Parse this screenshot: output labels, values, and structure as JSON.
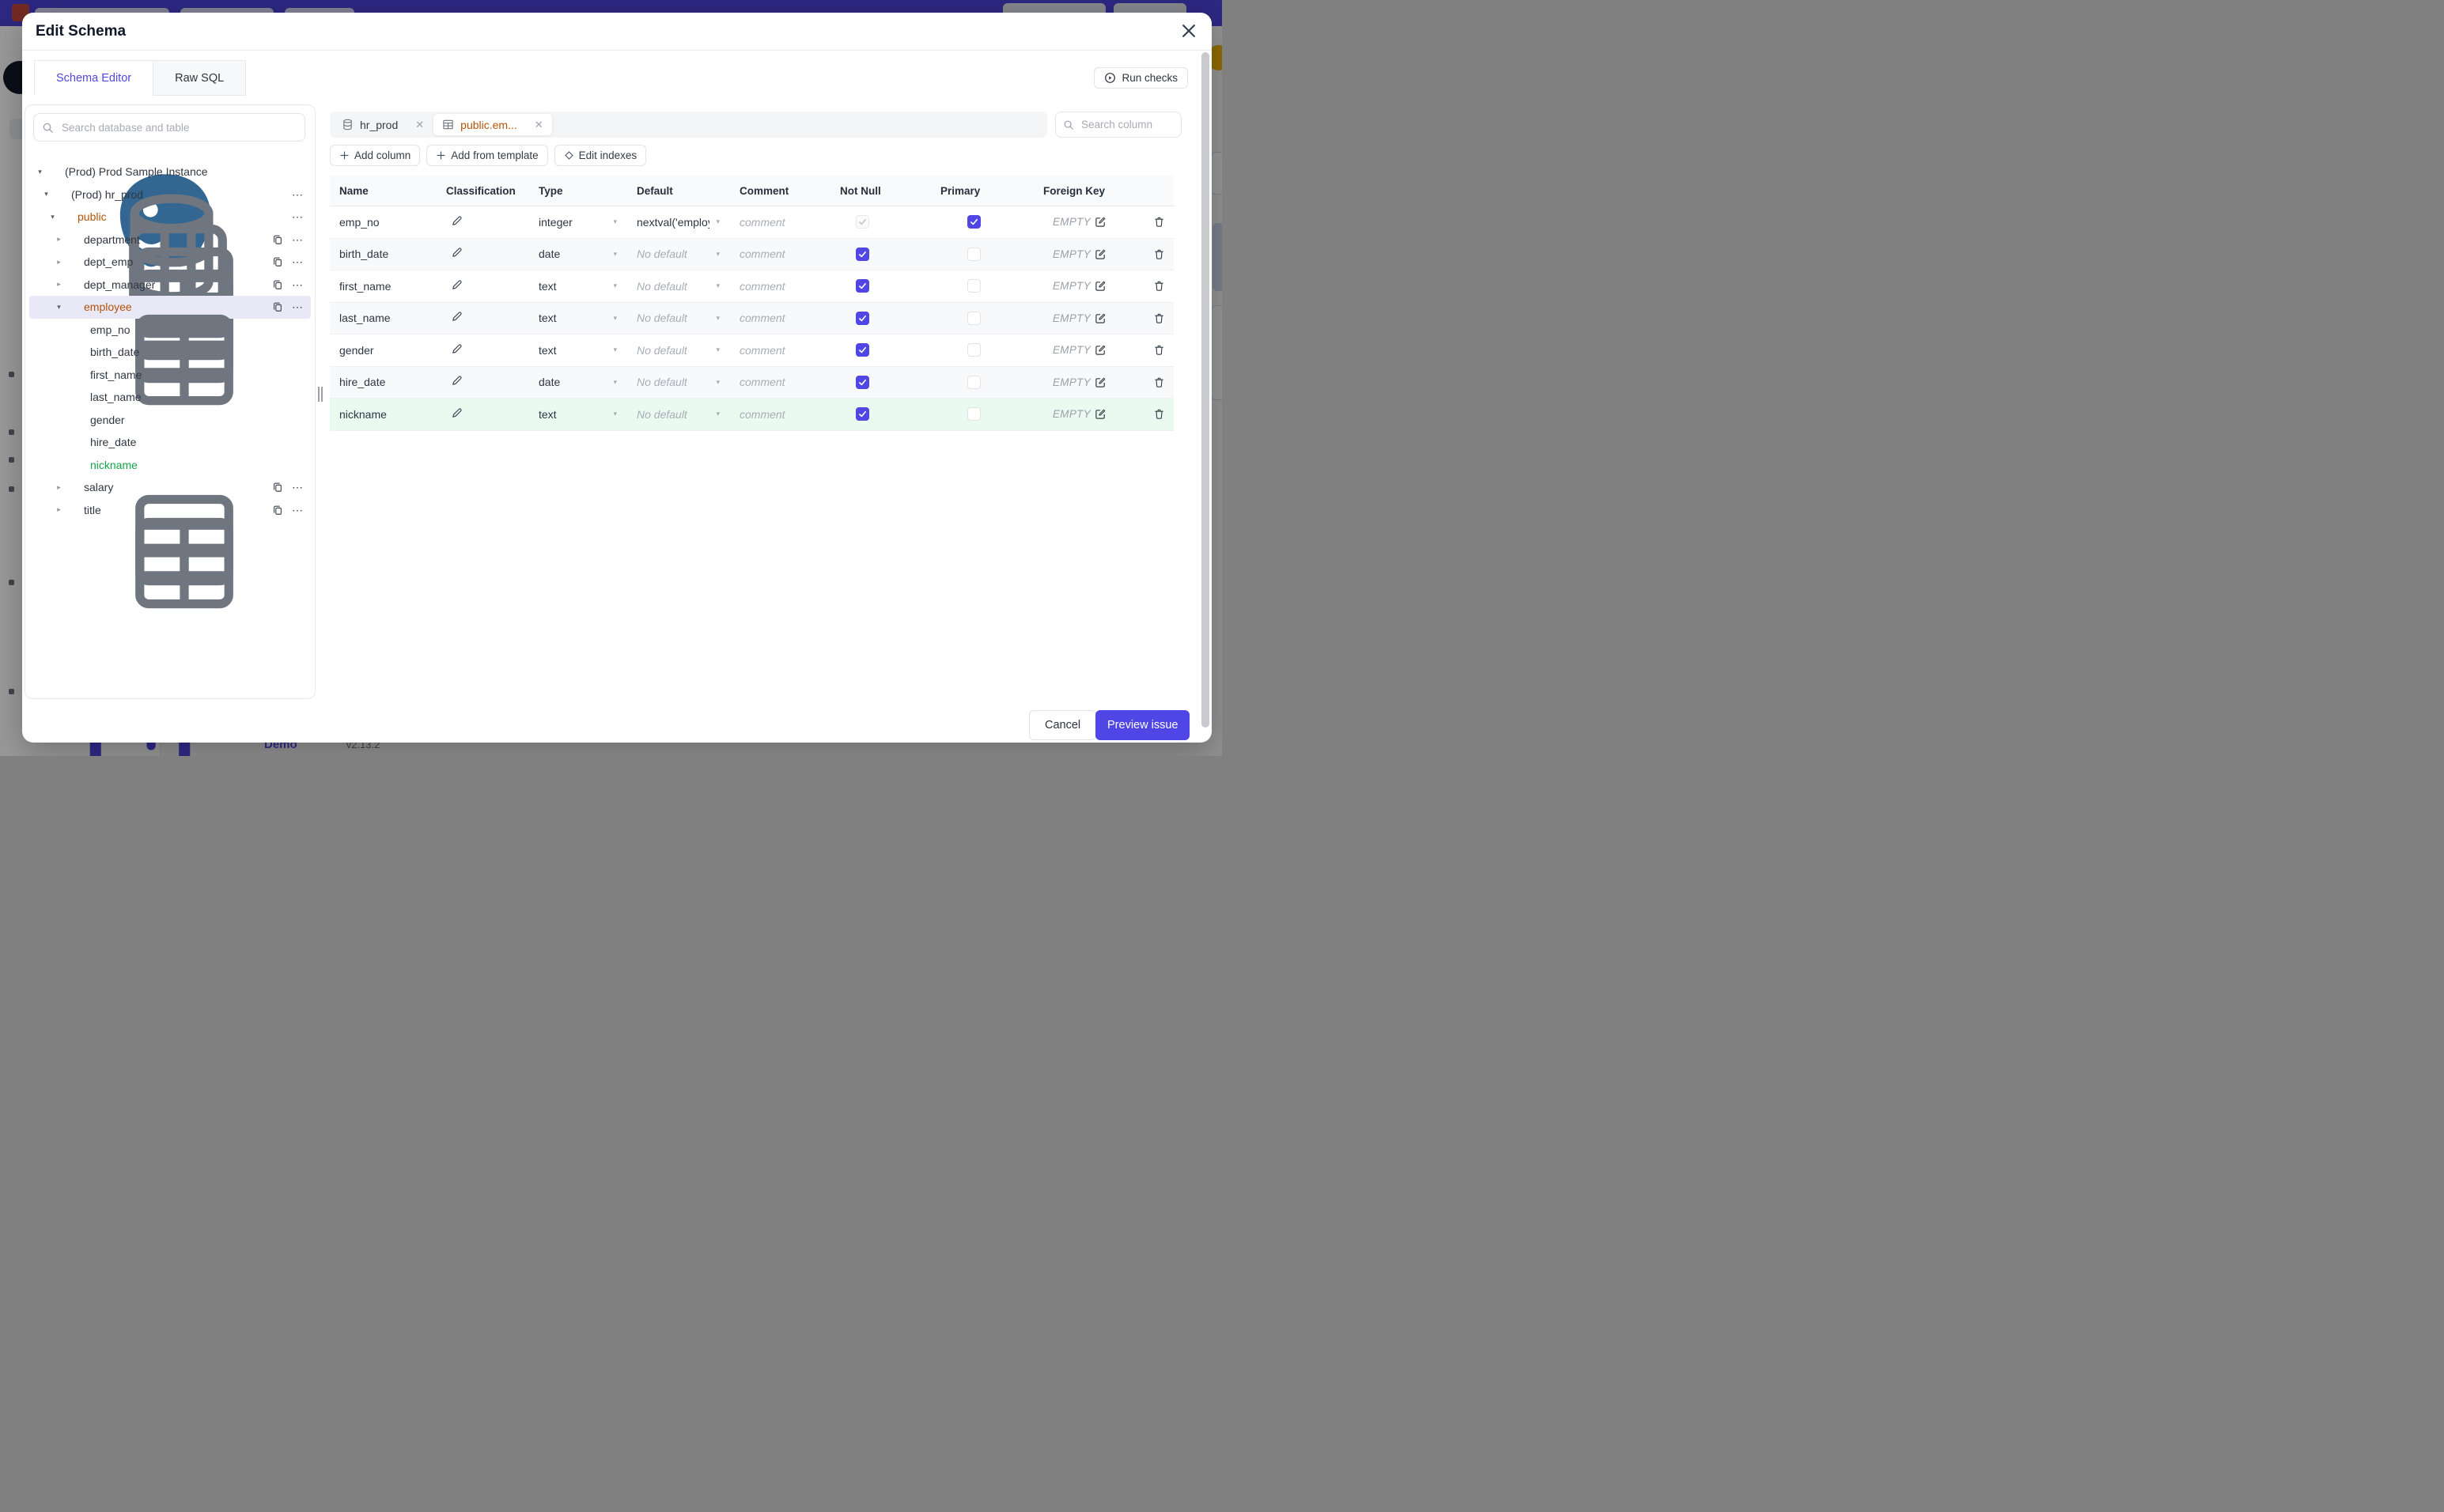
{
  "colors": {
    "accent": "#4f46e5",
    "amber": "#b45309",
    "green": "#16a34a",
    "topbar": "#4c43d8",
    "selected_bg": "#e9e8f7",
    "new_row_bg": "#eafaf1"
  },
  "underlay": {
    "demo_label": "Demo",
    "version": "v2.13.2"
  },
  "modal": {
    "title": "Edit Schema",
    "close_glyph": "✕",
    "tabs": [
      {
        "label": "Schema Editor",
        "active": true
      },
      {
        "label": "Raw SQL",
        "active": false
      }
    ],
    "run_checks_label": "Run checks"
  },
  "sidebar": {
    "search_placeholder": "Search database and table",
    "tree": [
      {
        "label": "(Prod) Prod Sample Instance",
        "icon": "postgres",
        "chevron": "down",
        "level": 0
      },
      {
        "label": "(Prod) hr_prod",
        "icon": "database",
        "chevron": "down",
        "level": 1,
        "more": true
      },
      {
        "label": "public",
        "icon": "schema",
        "chevron": "down",
        "level": 2,
        "more": true,
        "color": "amber"
      },
      {
        "label": "department",
        "icon": "table",
        "chevron": "right",
        "level": 3,
        "copy": true,
        "more": true
      },
      {
        "label": "dept_emp",
        "icon": "table",
        "chevron": "right",
        "level": 3,
        "copy": true,
        "more": true
      },
      {
        "label": "dept_manager",
        "icon": "table",
        "chevron": "right",
        "level": 3,
        "copy": true,
        "more": true
      },
      {
        "label": "employee",
        "icon": "table",
        "chevron": "down",
        "level": 3,
        "copy": true,
        "more": true,
        "color": "amber",
        "selected": true
      },
      {
        "label": "emp_no",
        "level": 4
      },
      {
        "label": "birth_date",
        "level": 4
      },
      {
        "label": "first_name",
        "level": 4
      },
      {
        "label": "last_name",
        "level": 4
      },
      {
        "label": "gender",
        "level": 4
      },
      {
        "label": "hire_date",
        "level": 4
      },
      {
        "label": "nickname",
        "level": 4,
        "color": "green"
      },
      {
        "label": "salary",
        "icon": "table",
        "chevron": "right",
        "level": 3,
        "copy": true,
        "more": true
      },
      {
        "label": "title",
        "icon": "table",
        "chevron": "right",
        "level": 3,
        "copy": true,
        "more": true
      }
    ]
  },
  "editor": {
    "chips": [
      {
        "label": "hr_prod",
        "icon": "database",
        "active": false,
        "close_glyph": "✕"
      },
      {
        "label": "public.em...",
        "icon": "table",
        "active": true,
        "close_glyph": "✕"
      }
    ],
    "column_search_placeholder": "Search column",
    "toolbar": [
      {
        "label": "Add column",
        "icon": "plus"
      },
      {
        "label": "Add from template",
        "icon": "plus"
      },
      {
        "label": "Edit indexes",
        "icon": "diamond"
      }
    ],
    "table": {
      "headers": [
        "Name",
        "Classification",
        "Type",
        "Default",
        "Comment",
        "Not Null",
        "Primary",
        "Foreign Key",
        ""
      ],
      "comment_placeholder": "comment",
      "foreign_key_empty": "EMPTY",
      "rows": [
        {
          "name": "emp_no",
          "type": "integer",
          "default": "nextval('employ",
          "default_placeholder": false,
          "not_null": "disabled",
          "primary": "checked",
          "state": "normal"
        },
        {
          "name": "birth_date",
          "type": "date",
          "default": "No default",
          "default_placeholder": true,
          "not_null": "checked",
          "primary": "unchecked",
          "state": "alt"
        },
        {
          "name": "first_name",
          "type": "text",
          "default": "No default",
          "default_placeholder": true,
          "not_null": "checked",
          "primary": "unchecked",
          "state": "normal"
        },
        {
          "name": "last_name",
          "type": "text",
          "default": "No default",
          "default_placeholder": true,
          "not_null": "checked",
          "primary": "unchecked",
          "state": "alt"
        },
        {
          "name": "gender",
          "type": "text",
          "default": "No default",
          "default_placeholder": true,
          "not_null": "checked",
          "primary": "unchecked",
          "state": "normal"
        },
        {
          "name": "hire_date",
          "type": "date",
          "default": "No default",
          "default_placeholder": true,
          "not_null": "checked",
          "primary": "unchecked",
          "state": "alt"
        },
        {
          "name": "nickname",
          "type": "text",
          "default": "No default",
          "default_placeholder": true,
          "not_null": "checked",
          "primary": "unchecked",
          "state": "new"
        }
      ]
    }
  },
  "footer": {
    "cancel_label": "Cancel",
    "primary_label": "Preview issue"
  }
}
